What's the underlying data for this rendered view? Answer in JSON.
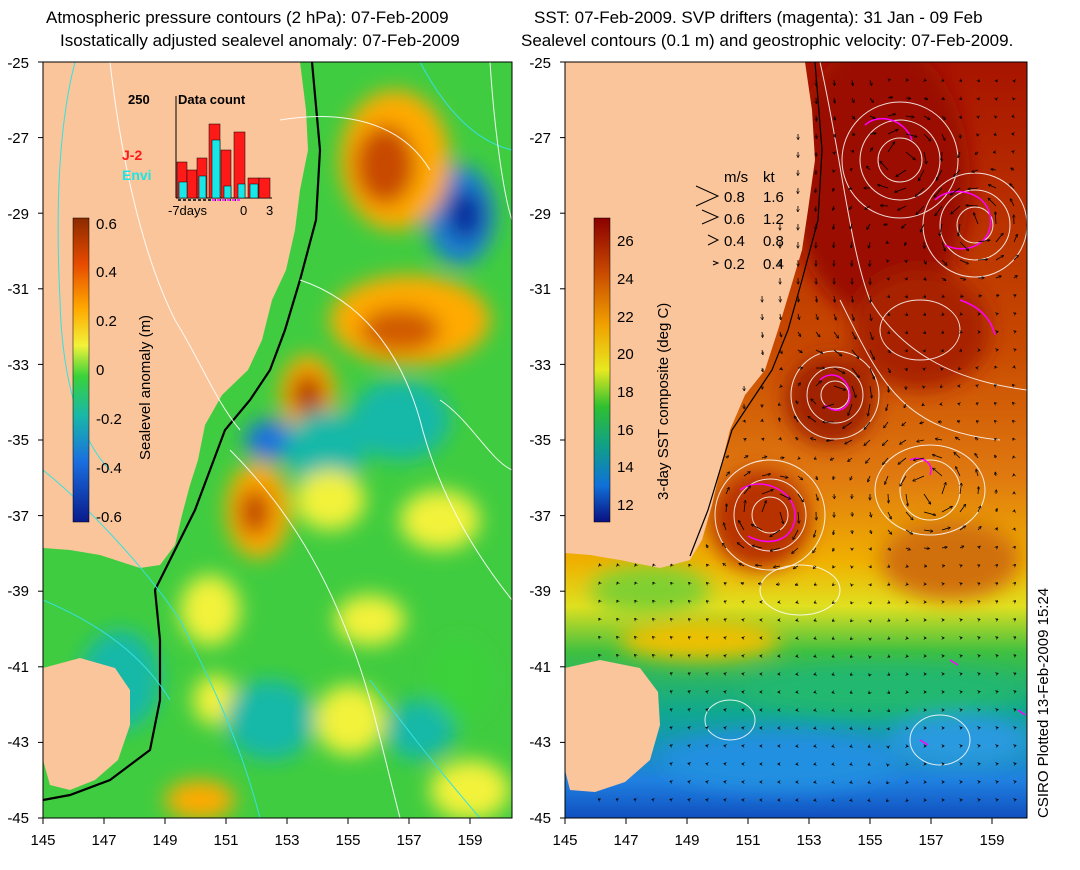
{
  "left_panel": {
    "title_line1": "Atmospheric pressure contours (2 hPa): 07-Feb-2009",
    "title_line2": "Isostatically adjusted sealevel anomaly: 07-Feb-2009",
    "colorbar_label": "Sealevel anomaly (m)",
    "colorbar_ticks": [
      "0.6",
      "0.4",
      "0.2",
      "0",
      "-0.2",
      "-0.4",
      "-0.6"
    ],
    "inset": {
      "title": "Data count",
      "ymax_label": "250",
      "series": [
        {
          "name": "J-2",
          "color": "#ff1a1a"
        },
        {
          "name": "Envi",
          "color": "#19e6e6"
        }
      ],
      "x_labels": [
        "-7days",
        "0",
        "3"
      ]
    }
  },
  "right_panel": {
    "title_line1": "SST: 07-Feb-2009. SVP drifters (magenta): 31 Jan - 09 Feb",
    "title_line2": "Sealevel contours (0.1 m) and geostrophic velocity: 07-Feb-2009.",
    "colorbar_label": "3-day SST composite (deg C)",
    "colorbar_ticks": [
      "26",
      "24",
      "22",
      "20",
      "18",
      "16",
      "14",
      "12"
    ],
    "velocity_legend": {
      "header_ms": "m/s",
      "header_kt": "kt",
      "rows": [
        {
          "ms": "0.8",
          "kt": "1.6"
        },
        {
          "ms": "0.6",
          "kt": "1.2"
        },
        {
          "ms": "0.4",
          "kt": "0.8"
        },
        {
          "ms": "0.2",
          "kt": "0.4"
        }
      ]
    }
  },
  "axes": {
    "lat_labels": [
      "-25",
      "-27",
      "-29",
      "-31",
      "-33",
      "-35",
      "-37",
      "-39",
      "-41",
      "-43",
      "-45"
    ],
    "lon_labels": [
      "145",
      "147",
      "149",
      "151",
      "153",
      "155",
      "157",
      "159"
    ]
  },
  "credit": "CSIRO Plotted 13-Feb-2009 15:24",
  "colors": {
    "land": "#fac59b",
    "anomaly_scale": [
      "#8b2a00",
      "#e64a00",
      "#ffaa00",
      "#f2f23a",
      "#3ad23a",
      "#18b8a8",
      "#1a6fe0",
      "#0a1a8c"
    ],
    "sst_scale": [
      "#8a0000",
      "#c84a00",
      "#f0a000",
      "#e8e820",
      "#30c030",
      "#10a088",
      "#1070d8",
      "#0a1080"
    ],
    "drifters": "#ff00ff"
  }
}
